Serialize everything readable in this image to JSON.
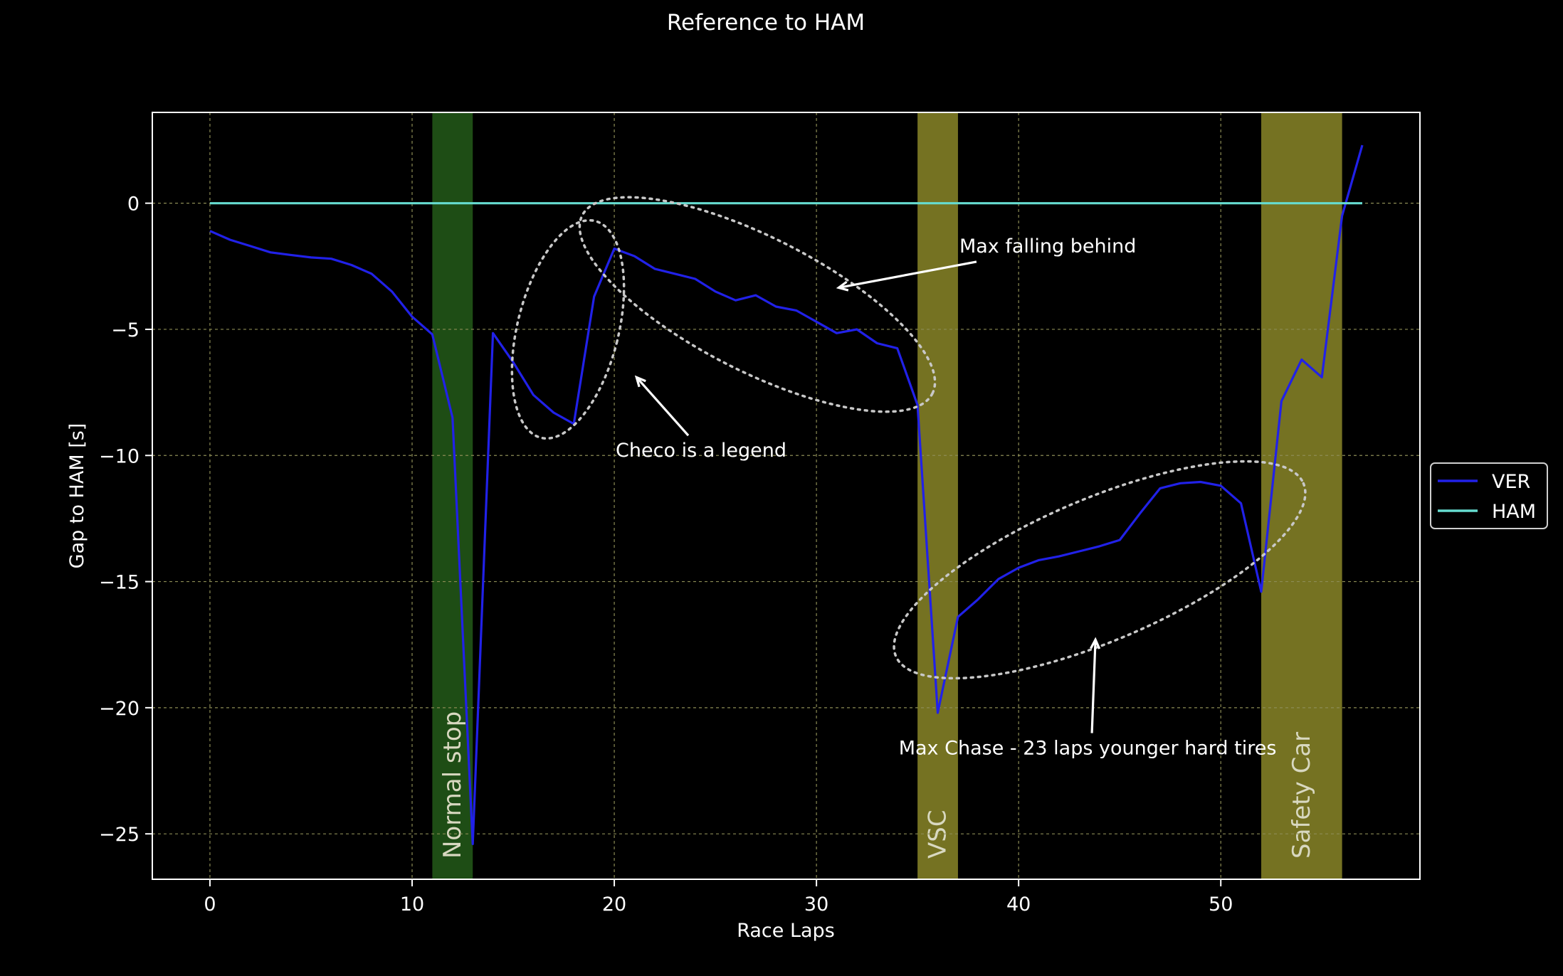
{
  "chart_data": {
    "type": "line",
    "title": "Reference to HAM",
    "xlabel": "Race Laps",
    "ylabel": "Gap to HAM [s]",
    "xlim": [
      -2.85,
      59.85
    ],
    "ylim": [
      -26.8,
      3.6
    ],
    "xticks": [
      0,
      10,
      20,
      30,
      40,
      50
    ],
    "yticks": [
      0,
      -5,
      -10,
      -15,
      -20,
      -25
    ],
    "xtick_labels": [
      "0",
      "10",
      "20",
      "30",
      "40",
      "50"
    ],
    "ytick_labels": [
      "0",
      "−5",
      "−10",
      "−15",
      "−20",
      "−25"
    ],
    "grid": true,
    "legend_placement": "center-right, outside plot",
    "background": "#000000",
    "series": [
      {
        "name": "VER",
        "color": "#2121e8",
        "x": [
          0,
          1,
          2,
          3,
          4,
          5,
          6,
          7,
          8,
          9,
          10,
          11,
          12,
          13,
          14,
          15,
          16,
          17,
          18,
          19,
          20,
          21,
          22,
          23,
          24,
          25,
          26,
          27,
          28,
          29,
          30,
          31,
          32,
          33,
          34,
          35,
          36,
          37,
          38,
          39,
          40,
          41,
          42,
          43,
          44,
          45,
          46,
          47,
          48,
          49,
          50,
          51,
          52,
          53,
          54,
          55,
          56,
          57
        ],
        "values": [
          -1.1,
          -1.45,
          -1.7,
          -1.95,
          -2.05,
          -2.15,
          -2.2,
          -2.45,
          -2.8,
          -3.5,
          -4.5,
          -5.2,
          -8.5,
          -25.4,
          -5.15,
          -6.3,
          -7.6,
          -8.3,
          -8.75,
          -3.7,
          -1.8,
          -2.1,
          -2.6,
          -2.8,
          -3.0,
          -3.5,
          -3.85,
          -3.65,
          -4.1,
          -4.25,
          -4.7,
          -5.15,
          -5.0,
          -5.55,
          -5.75,
          -8.0,
          -20.2,
          -16.4,
          -15.7,
          -14.9,
          -14.45,
          -14.15,
          -14.0,
          -13.8,
          -13.6,
          -13.35,
          -12.3,
          -11.3,
          -11.1,
          -11.05,
          -11.2,
          -11.9,
          -15.4,
          -7.85,
          -6.2,
          -6.9,
          -0.5,
          2.3
        ]
      },
      {
        "name": "HAM",
        "color": "#66dcd0",
        "x": [
          0,
          57
        ],
        "values": [
          0,
          0
        ]
      }
    ],
    "shaded_regions": [
      {
        "x_start": 11,
        "x_end": 13,
        "label": "Normal stop",
        "color": "#1e4d15"
      },
      {
        "x_start": 35,
        "x_end": 37,
        "label": "VSC",
        "color": "#757222"
      },
      {
        "x_start": 52,
        "x_end": 56,
        "label": "Safety Car",
        "color": "#757222"
      }
    ],
    "annotations": [
      {
        "text": "Max falling behind",
        "text_at": [
          37,
          -1.7
        ],
        "arrow_to": [
          31.1,
          -3.35
        ]
      },
      {
        "text": "Checo is a legend",
        "text_at": [
          20,
          -9.8
        ],
        "arrow_to": [
          21.1,
          -6.9
        ]
      },
      {
        "text": "Max Chase - 23 laps younger hard tires",
        "text_at": [
          34,
          -21.6
        ],
        "arrow_to": [
          43.8,
          -17.3
        ]
      }
    ]
  }
}
